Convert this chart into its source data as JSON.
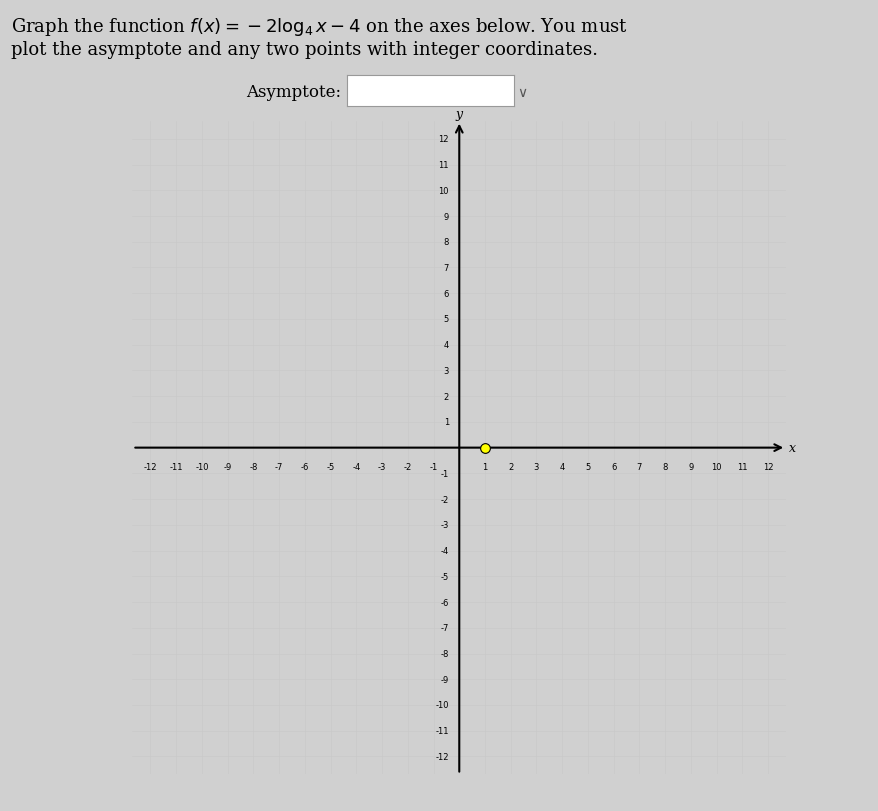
{
  "title_line1": "Graph the function $f(x) = -2\\log_4 x - 4$ on the axes below. You must",
  "title_line2": "plot the asymptote and any two points with integer coordinates.",
  "asymptote_label": "Asymptote:",
  "xmin": -12,
  "xmax": 12,
  "ymin": -12,
  "ymax": 12,
  "grid_color": "#c8c8c8",
  "grid_lw": 0.4,
  "background_color": "#d0d0d0",
  "plot_bg_color": "#f0f0f0",
  "dot_color": "#ffff00",
  "dot_x": 1,
  "dot_y": 0,
  "dot_edge_color": "#000000",
  "title_fontsize": 13,
  "tick_fontsize": 6,
  "axis_label_fontsize": 9,
  "asymptote_fontsize": 12
}
